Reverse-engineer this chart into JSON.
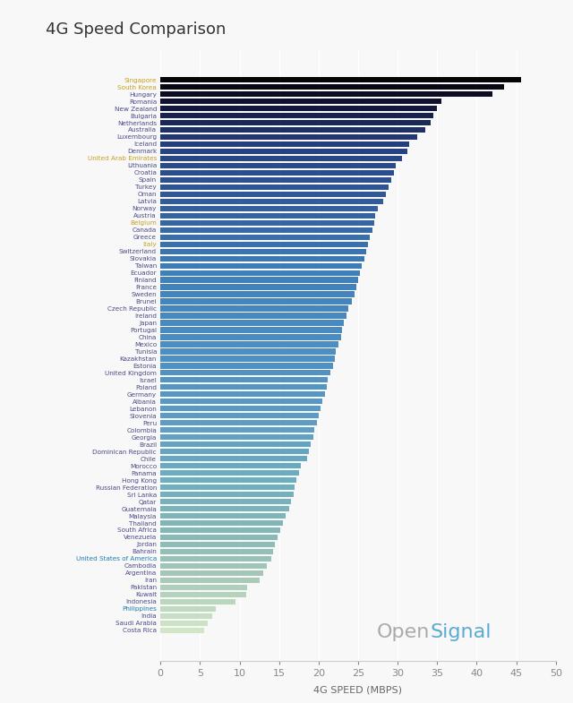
{
  "title": "4G Speed Comparison",
  "xlabel": "4G SPEED (MBPS)",
  "countries": [
    "Singapore",
    "South Korea",
    "Hungary",
    "Romania",
    "New Zealand",
    "Bulgaria",
    "Netherlands",
    "Australia",
    "Luxembourg",
    "Iceland",
    "Denmark",
    "United Arab Emirates",
    "Lithuania",
    "Croatia",
    "Spain",
    "Turkey",
    "Oman",
    "Latvia",
    "Norway",
    "Austria",
    "Belgium",
    "Canada",
    "Greece",
    "Italy",
    "Switzerland",
    "Slovakia",
    "Taiwan",
    "Ecuador",
    "Finland",
    "France",
    "Sweden",
    "Brunei",
    "Czech Republic",
    "Ireland",
    "Japan",
    "Portugal",
    "China",
    "Mexico",
    "Tunisia",
    "Kazakhstan",
    "Estonia",
    "United Kingdom",
    "Israel",
    "Poland",
    "Germany",
    "Albania",
    "Lebanon",
    "Slovenia",
    "Peru",
    "Colombia",
    "Georgia",
    "Brazil",
    "Dominican Republic",
    "Chile",
    "Morocco",
    "Panama",
    "Hong Kong",
    "Russian Federation",
    "Sri Lanka",
    "Qatar",
    "Guatemala",
    "Malaysia",
    "Thailand",
    "South Africa",
    "Venezuela",
    "Jordan",
    "Bahrain",
    "United States of America",
    "Cambodia",
    "Argentina",
    "Iran",
    "Pakistan",
    "Kuwait",
    "Indonesia",
    "Philippines",
    "India",
    "Saudi Arabia",
    "Costa Rica"
  ],
  "values": [
    45.6,
    43.5,
    42.0,
    35.5,
    35.0,
    34.5,
    34.2,
    33.5,
    32.5,
    31.5,
    31.2,
    30.5,
    29.8,
    29.5,
    29.2,
    28.8,
    28.5,
    28.2,
    27.5,
    27.2,
    27.0,
    26.8,
    26.5,
    26.3,
    26.0,
    25.8,
    25.5,
    25.2,
    25.0,
    24.8,
    24.5,
    24.2,
    23.8,
    23.5,
    23.2,
    23.0,
    22.8,
    22.5,
    22.2,
    22.0,
    21.8,
    21.5,
    21.2,
    21.0,
    20.8,
    20.5,
    20.2,
    20.0,
    19.8,
    19.5,
    19.3,
    19.0,
    18.8,
    18.5,
    17.8,
    17.5,
    17.2,
    17.0,
    16.8,
    16.5,
    16.3,
    15.8,
    15.5,
    15.2,
    14.8,
    14.5,
    14.2,
    14.0,
    13.5,
    13.0,
    12.5,
    11.0,
    10.8,
    9.5,
    7.0,
    6.5,
    6.0,
    5.5
  ],
  "label_colors": {
    "Singapore": "#c8a020",
    "South Korea": "#c8a020",
    "Hungary": "#4a4a8a",
    "Romania": "#4a4a8a",
    "New Zealand": "#4a4a8a",
    "Bulgaria": "#4a4a8a",
    "Netherlands": "#4a4a8a",
    "Australia": "#4a4a8a",
    "Luxembourg": "#4a4a8a",
    "Iceland": "#4a4a8a",
    "Denmark": "#4a4a8a",
    "United Arab Emirates": "#c8a020",
    "Lithuania": "#4a4a8a",
    "Croatia": "#4a4a8a",
    "Spain": "#4a4a8a",
    "Turkey": "#4a4a8a",
    "Oman": "#4a4a8a",
    "Latvia": "#4a4a8a",
    "Norway": "#4a4a8a",
    "Austria": "#4a4a8a",
    "Belgium": "#c8a020",
    "Canada": "#4a4a8a",
    "Greece": "#4a4a8a",
    "Italy": "#c8a020",
    "Switzerland": "#4a4a8a",
    "Slovakia": "#4a4a8a",
    "Taiwan": "#4a4a8a",
    "Ecuador": "#4a4a8a",
    "Finland": "#4a4a8a",
    "France": "#4a4a8a",
    "Sweden": "#4a4a8a",
    "Brunei": "#4a4a8a",
    "Czech Republic": "#4a4a8a",
    "Ireland": "#4a4a8a",
    "Japan": "#4a4a8a",
    "Portugal": "#4a4a8a",
    "China": "#4a4a8a",
    "Mexico": "#4a4a8a",
    "Tunisia": "#4a4a8a",
    "Kazakhstan": "#4a4a8a",
    "Estonia": "#4a4a8a",
    "United Kingdom": "#4a4a8a",
    "Israel": "#4a4a8a",
    "Poland": "#4a4a8a",
    "Germany": "#4a4a8a",
    "Albania": "#4a4a8a",
    "Lebanon": "#4a4a8a",
    "Slovenia": "#4a4a8a",
    "Peru": "#4a4a8a",
    "Colombia": "#4a4a8a",
    "Georgia": "#4a4a8a",
    "Brazil": "#4a4a8a",
    "Dominican Republic": "#4a4a8a",
    "Chile": "#4a4a8a",
    "Morocco": "#4a4a8a",
    "Panama": "#4a4a8a",
    "Hong Kong": "#4a4a8a",
    "Russian Federation": "#4a4a8a",
    "Sri Lanka": "#4a4a8a",
    "Qatar": "#4a4a8a",
    "Guatemala": "#4a4a8a",
    "Malaysia": "#4a4a8a",
    "Thailand": "#4a4a8a",
    "South Africa": "#4a4a8a",
    "Venezuela": "#4a4a8a",
    "Jordan": "#4a4a8a",
    "Bahrain": "#4a4a8a",
    "United States of America": "#1a7ab0",
    "Cambodia": "#4a4a8a",
    "Argentina": "#4a4a8a",
    "Iran": "#4a4a8a",
    "Pakistan": "#4a4a8a",
    "Kuwait": "#4a4a8a",
    "Indonesia": "#4a4a8a",
    "Philippines": "#1a7ab0",
    "India": "#4a4a8a",
    "Saudi Arabia": "#4a4a8a",
    "Costa Rica": "#4a4a8a"
  },
  "background_color": "#f8f8f8",
  "xlim": [
    0,
    50
  ],
  "xticks": [
    0,
    5,
    10,
    15,
    20,
    25,
    30,
    35,
    40,
    45,
    50
  ]
}
